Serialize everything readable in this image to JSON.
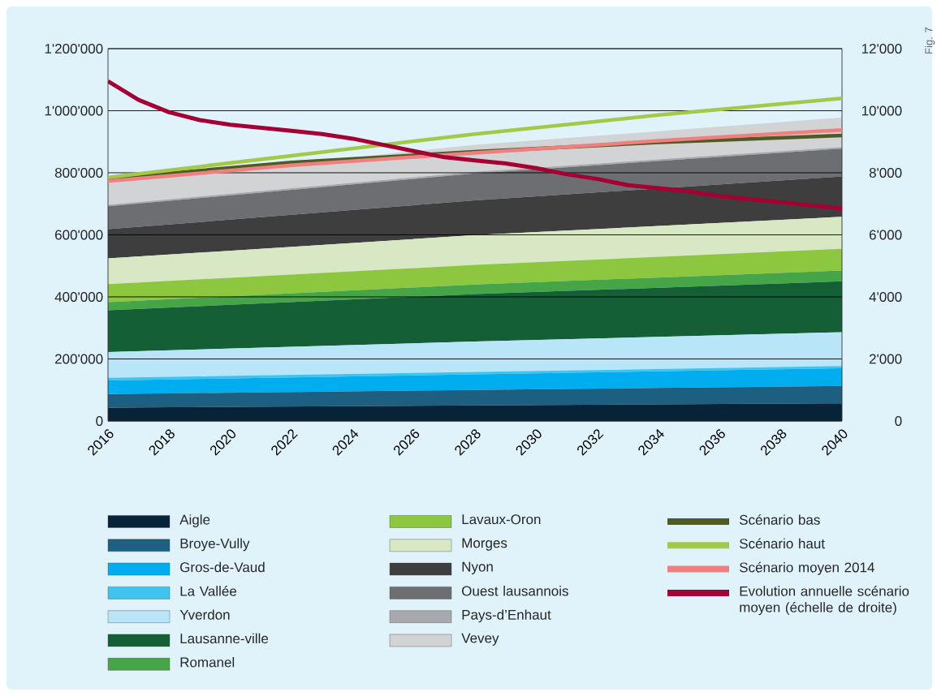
{
  "chart_data": {
    "type": "area",
    "stacked": true,
    "xlim": [
      2016,
      2040
    ],
    "xticks": [
      2016,
      2018,
      2020,
      2022,
      2024,
      2026,
      2028,
      2030,
      2032,
      2034,
      2036,
      2038,
      2040
    ],
    "ylim": [
      0,
      1200000
    ],
    "yticks": [
      {
        "value": 0,
        "label": "0"
      },
      {
        "value": 200000,
        "label": "200'000"
      },
      {
        "value": 400000,
        "label": "400'000"
      },
      {
        "value": 600000,
        "label": "600'000"
      },
      {
        "value": 800000,
        "label": "800'000"
      },
      {
        "value": 1000000,
        "label": "1'000'000"
      },
      {
        "value": 1200000,
        "label": "1'200'000"
      }
    ],
    "y2lim": [
      0,
      12000
    ],
    "y2ticks": [
      {
        "value": 0,
        "label": "0"
      },
      {
        "value": 2000,
        "label": "2'000"
      },
      {
        "value": 4000,
        "label": "4'000"
      },
      {
        "value": 6000,
        "label": "6'000"
      },
      {
        "value": 8000,
        "label": "8'000"
      },
      {
        "value": 10000,
        "label": "10'000"
      },
      {
        "value": 12000,
        "label": "12'000"
      }
    ],
    "grid": "y",
    "legend": "bottom",
    "marker": "none",
    "annotations": [
      "Fig. 7"
    ],
    "series": [
      {
        "name": "Aigle",
        "color": "#062337",
        "x": [
          2016,
          2028,
          2040
        ],
        "values": [
          43000,
          50000,
          57000
        ]
      },
      {
        "name": "Broye-Vully",
        "color": "#1d5f80",
        "x": [
          2016,
          2028,
          2040
        ],
        "values": [
          44000,
          50000,
          56000
        ]
      },
      {
        "name": "Gros-de-Vaud",
        "color": "#00aeef",
        "x": [
          2016,
          2028,
          2040
        ],
        "values": [
          44000,
          50000,
          57000
        ]
      },
      {
        "name": "La Vallée",
        "color": "#3fc4f0",
        "x": [
          2016,
          2028,
          2040
        ],
        "values": [
          8000,
          8000,
          7000
        ]
      },
      {
        "name": "Yverdon",
        "color": "#b8e5f8",
        "x": [
          2016,
          2028,
          2040
        ],
        "values": [
          83000,
          98000,
          109000
        ]
      },
      {
        "name": "Lausanne-ville",
        "color": "#155f36",
        "x": [
          2016,
          2028,
          2040
        ],
        "values": [
          135000,
          153000,
          164000
        ]
      },
      {
        "name": "Romanel",
        "color": "#46a546",
        "x": [
          2016,
          2028,
          2040
        ],
        "values": [
          26000,
          31000,
          35000
        ]
      },
      {
        "name": "Lavaux-Oron",
        "color": "#8dc63f",
        "x": [
          2016,
          2028,
          2040
        ],
        "values": [
          58000,
          63000,
          70000
        ]
      },
      {
        "name": "Morges",
        "color": "#d9e8c4",
        "x": [
          2016,
          2028,
          2040
        ],
        "values": [
          83000,
          96000,
          103000
        ]
      },
      {
        "name": "Nyon",
        "color": "#3e3e3e",
        "x": [
          2016,
          2028,
          2040
        ],
        "values": [
          94000,
          112000,
          130000
        ]
      },
      {
        "name": "Ouest lausannois",
        "color": "#6d6e71",
        "x": [
          2016,
          2028,
          2040
        ],
        "values": [
          74000,
          87000,
          90000
        ]
      },
      {
        "name": "Pays-d’Enhaut",
        "color": "#a7a9ac",
        "x": [
          2016,
          2028,
          2040
        ],
        "values": [
          5000,
          5000,
          5000
        ]
      },
      {
        "name": "Vevey",
        "color": "#d1d3d4",
        "x": [
          2016,
          2028,
          2040
        ],
        "values": [
          70000,
          87000,
          95000
        ]
      },
      {
        "name": "Scénario bas",
        "type": "line",
        "color": "#4f5b24",
        "x": [
          2016,
          2022,
          2028,
          2034,
          2040
        ],
        "values": [
          781000,
          833000,
          868000,
          898000,
          920000
        ]
      },
      {
        "name": "Scénario haut",
        "type": "line",
        "color": "#a4c94a",
        "x": [
          2016,
          2022,
          2028,
          2034,
          2040
        ],
        "values": [
          785000,
          855000,
          925000,
          986000,
          1040000
        ]
      },
      {
        "name": "Scénario moyen 2014",
        "type": "line",
        "color": "#f08080",
        "x": [
          2016,
          2022,
          2028,
          2034,
          2040
        ],
        "values": [
          773000,
          824000,
          864000,
          903000,
          938000
        ]
      },
      {
        "name": "Evolution annuelle scénario moyen (échelle de droite)",
        "type": "line",
        "axis": "y2",
        "color": "#a50034",
        "x": [
          2016,
          2017,
          2018,
          2019,
          2020,
          2021,
          2022,
          2023,
          2024,
          2025,
          2026,
          2027,
          2028,
          2029,
          2030,
          2031,
          2032,
          2033,
          2034,
          2035,
          2036,
          2037,
          2038,
          2039,
          2040
        ],
        "values": [
          10950,
          10350,
          9950,
          9700,
          9550,
          9450,
          9350,
          9250,
          9100,
          8900,
          8700,
          8500,
          8400,
          8300,
          8150,
          7950,
          7800,
          7600,
          7500,
          7400,
          7250,
          7150,
          7050,
          6950,
          6850
        ]
      }
    ]
  }
}
